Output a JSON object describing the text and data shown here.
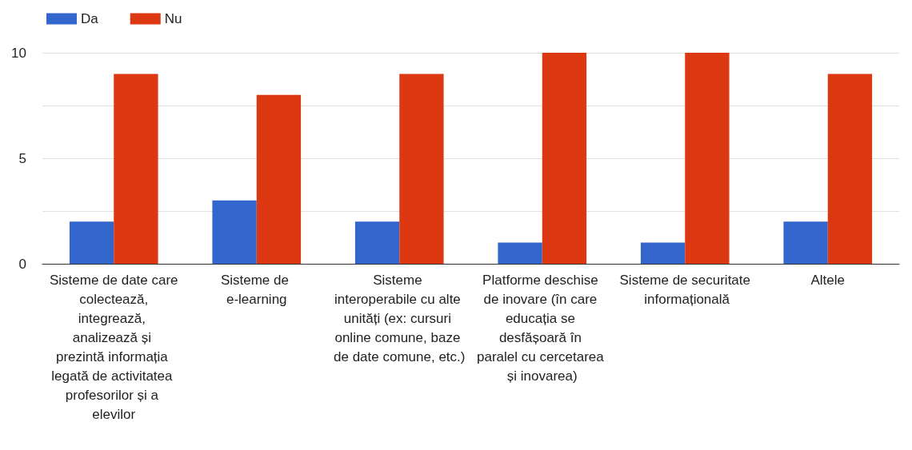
{
  "chart_data": {
    "type": "bar",
    "categories": [
      "Sisteme de date care colectează, integrează, analizează și prezintă informația legată de activitatea profesorilor și a elevilor",
      "Sisteme de e-learning",
      "Sisteme interoperabile cu alte unități (ex: cursuri online comune, baze de date comune, etc.)",
      "Platforme deschise de inovare (în care educația se desfășoară în paralel cu cercetarea și inovarea)",
      "Sisteme de securitate informațională",
      "Altele"
    ],
    "series": [
      {
        "name": "Da",
        "color": "#3366cc",
        "values": [
          2,
          3,
          2,
          1,
          1,
          2
        ]
      },
      {
        "name": "Nu",
        "color": "#dc3912",
        "values": [
          9,
          8,
          9,
          10,
          10,
          9
        ]
      }
    ],
    "ylim": [
      0,
      10
    ],
    "yticks": [
      0,
      {
        "value": 2.5,
        "label": null
      },
      5,
      {
        "value": 7.5,
        "label": null
      },
      10
    ],
    "grid": "y",
    "legend": "top left"
  }
}
